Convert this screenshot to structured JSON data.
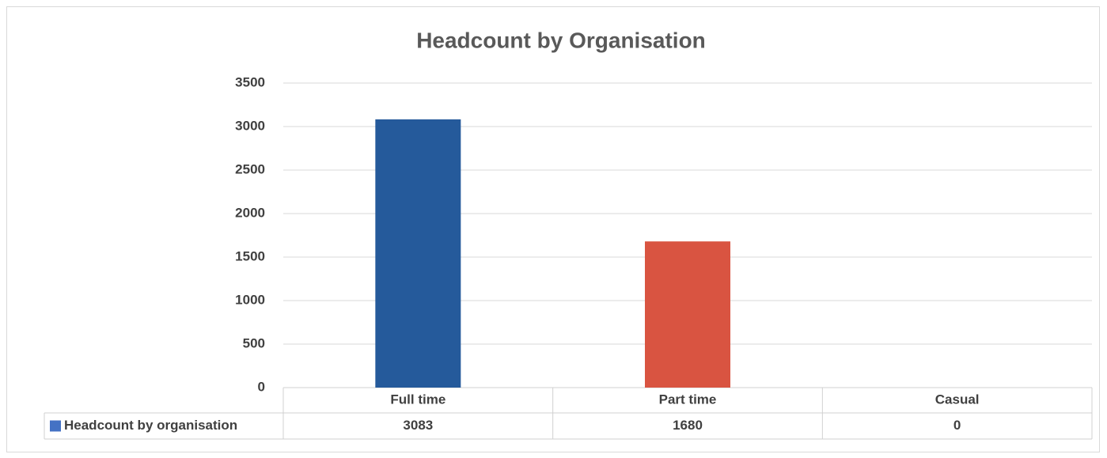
{
  "chart_data": {
    "type": "bar",
    "title": "Headcount by Organisation",
    "categories": [
      "Full time",
      "Part time",
      "Casual"
    ],
    "series": [
      {
        "name": "Headcount by organisation",
        "color": "#4472c4",
        "values": [
          3083,
          1680,
          0
        ]
      }
    ],
    "point_colors": [
      "#255a9b",
      "#d95441",
      "#4472c4"
    ],
    "ylim": [
      0,
      3500
    ],
    "yticks": [
      0,
      500,
      1000,
      1500,
      2000,
      2500,
      3000,
      3500
    ],
    "grid": true,
    "data_table": true
  }
}
